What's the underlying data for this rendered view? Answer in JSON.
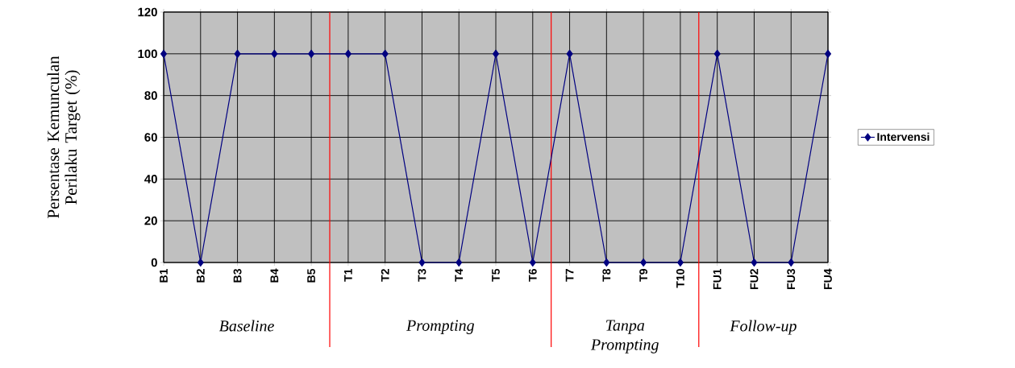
{
  "chart_data": {
    "type": "line",
    "ylabel": "Persentase Kemunculan Perilaku Target (%)",
    "categories": [
      "B1",
      "B2",
      "B3",
      "B4",
      "B5",
      "T1",
      "T2",
      "T3",
      "T4",
      "T5",
      "T6",
      "T7",
      "T8",
      "T9",
      "T10",
      "FU1",
      "FU2",
      "FU3",
      "FU4"
    ],
    "series": [
      {
        "name": "Intervensi",
        "color": "#000080",
        "values": [
          100,
          0,
          100,
          100,
          100,
          100,
          100,
          0,
          0,
          100,
          0,
          100,
          0,
          0,
          0,
          100,
          0,
          0,
          100
        ]
      }
    ],
    "ylim": [
      0,
      120
    ],
    "yticks": [
      0,
      20,
      40,
      60,
      80,
      100,
      120
    ],
    "grid": true,
    "legend": "right",
    "marker": "diamond",
    "line_style": "solid",
    "annotations": [
      "*Baseline*",
      "*Prompting*",
      "*Tanpa Prompting*",
      "*Follow-up*"
    ]
  }
}
